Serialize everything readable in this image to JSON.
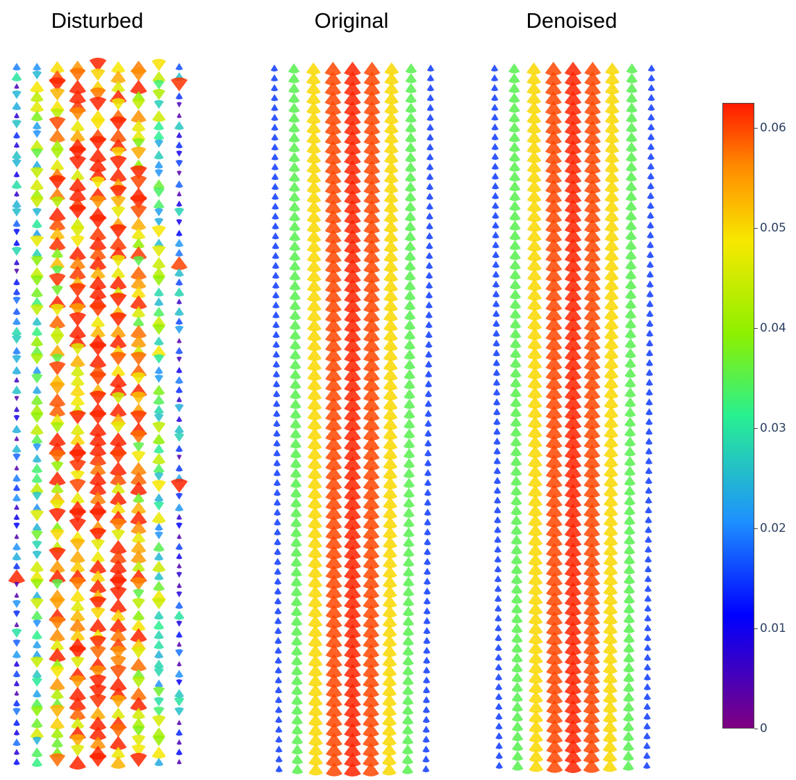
{
  "panels": [
    {
      "title": "Disturbed",
      "kind": "noisy"
    },
    {
      "title": "Original",
      "kind": "clean"
    },
    {
      "title": "Denoised",
      "kind": "clean"
    }
  ],
  "colorbar": {
    "min": 0,
    "max": 0.0625,
    "ticks": [
      "0.06",
      "0.05",
      "0.04",
      "0.03",
      "0.02",
      "0.01",
      "0"
    ],
    "tick_values": [
      0.06,
      0.05,
      0.04,
      0.03,
      0.02,
      0.01,
      0
    ],
    "colorscale": "rainbow",
    "colors": [
      "#800080",
      "#0000ff",
      "#1e90ff",
      "#28f090",
      "#8cf000",
      "#f8e800",
      "#ff8a00",
      "#ff1a00"
    ]
  },
  "column_profile": [
    0.015,
    0.035,
    0.05,
    0.06,
    0.062,
    0.06,
    0.05,
    0.035,
    0.015
  ]
}
